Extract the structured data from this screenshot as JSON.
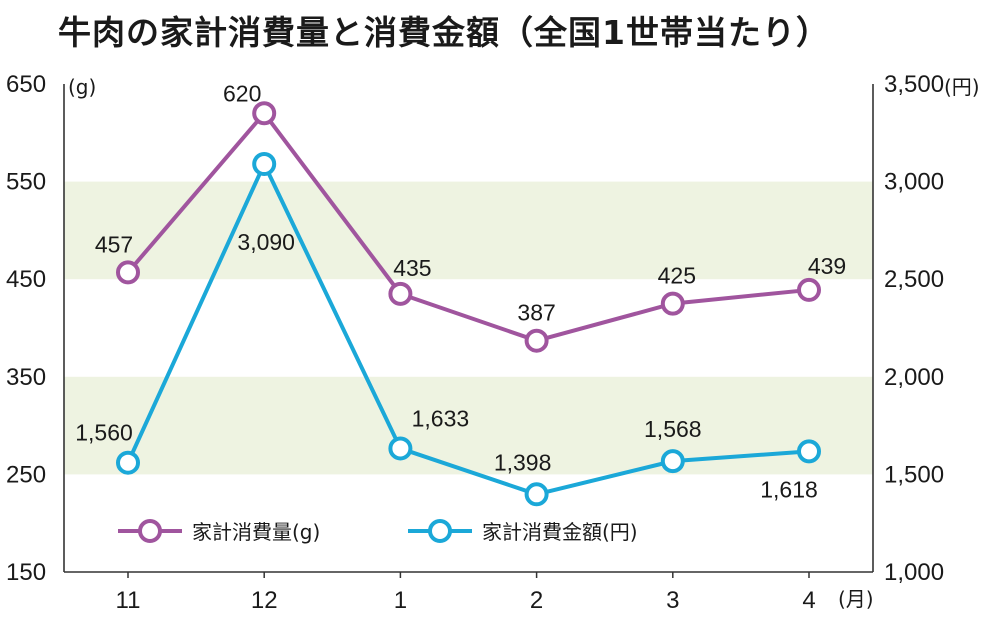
{
  "chart_data": {
    "type": "line",
    "title": "牛肉の家計消費量と消費金額（全国1世帯当たり）",
    "categories": [
      "11",
      "12",
      "1",
      "2",
      "3",
      "4"
    ],
    "x_unit": "(月)",
    "y_left": {
      "unit": "(g)",
      "range": [
        150,
        650
      ],
      "ticks": [
        "150",
        "250",
        "350",
        "450",
        "550",
        "650"
      ]
    },
    "y_right": {
      "unit": "(円)",
      "range": [
        1000,
        3500
      ],
      "ticks": [
        "1,000",
        "1,500",
        "2,000",
        "2,500",
        "3,000",
        "3,500"
      ]
    },
    "grid": "alternating horizontal bands",
    "legend_position": "bottom-left",
    "series": [
      {
        "name": "家計消費量(g)",
        "axis": "left",
        "color": "#a0559e",
        "values": [
          457,
          620,
          435,
          387,
          425,
          439
        ],
        "labels": [
          "457",
          "620",
          "435",
          "387",
          "425",
          "439"
        ]
      },
      {
        "name": "家計消費金額(円)",
        "axis": "right",
        "color": "#1ba8d8",
        "values": [
          1560,
          3090,
          1633,
          1398,
          1568,
          1618
        ],
        "labels": [
          "1,560",
          "3,090",
          "1,633",
          "1,398",
          "1,568",
          "1,618"
        ]
      }
    ]
  }
}
